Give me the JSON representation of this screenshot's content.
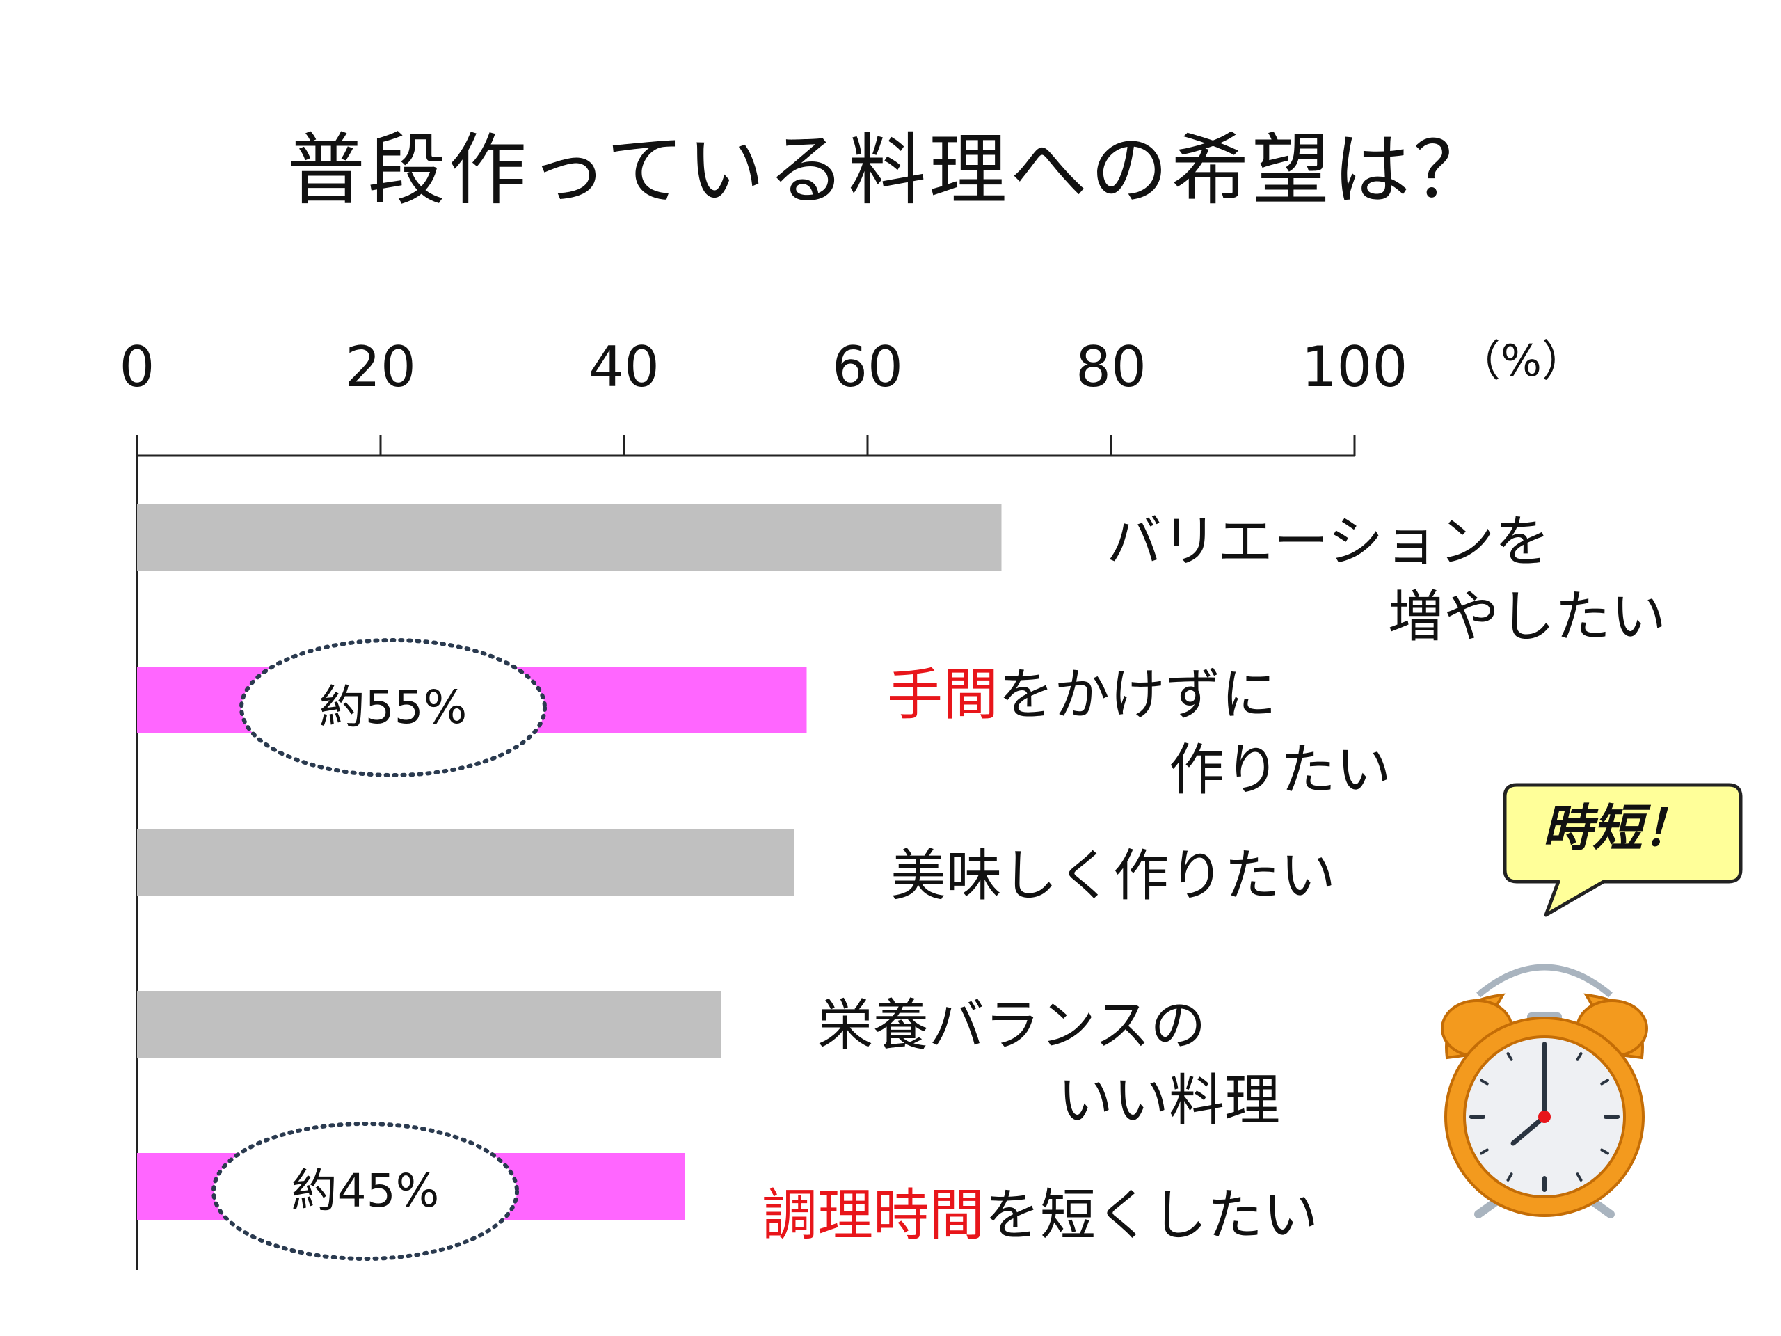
{
  "title": "普段作っている料理への希望は？",
  "chart_data": {
    "type": "bar",
    "orientation": "horizontal",
    "title": "普段作っている料理への希望は？",
    "xlim": [
      0,
      100
    ],
    "x_ticks": [
      "0",
      "20",
      "40",
      "60",
      "80",
      "100"
    ],
    "unit_label": "（%）",
    "grid": false,
    "categories": [
      {
        "parts": [
          {
            "text": "バリエーションを",
            "highlight": false
          }
        ],
        "second_line": "増やしたい"
      },
      {
        "parts": [
          {
            "text": "手間",
            "highlight": true
          },
          {
            "text": "をかけずに",
            "highlight": false
          }
        ],
        "second_line": "作りたい"
      },
      {
        "parts": [
          {
            "text": "美味しく作りたい",
            "highlight": false
          }
        ],
        "second_line": ""
      },
      {
        "parts": [
          {
            "text": "栄養バランスの",
            "highlight": false
          }
        ],
        "second_line": "いい料理"
      },
      {
        "parts": [
          {
            "text": "調理時間",
            "highlight": true
          },
          {
            "text": "を短くしたい",
            "highlight": false
          }
        ],
        "second_line": ""
      }
    ],
    "values": [
      71,
      55,
      54,
      48,
      45
    ],
    "bar_colors": [
      "#c0c0c0",
      "#ff66ff",
      "#c0c0c0",
      "#c0c0c0",
      "#ff66ff"
    ],
    "highlight_color": "#e8151a",
    "annotations": [
      {
        "bar_index": 1,
        "text": "約55%"
      },
      {
        "bar_index": 4,
        "text": "約45%"
      }
    ]
  },
  "speech_bubble": {
    "text": "時短！",
    "fill": "#ffff99"
  },
  "illustration": {
    "icon": "alarm-clock-icon",
    "body_color": "#f39a1e",
    "time_shown": "8:00"
  }
}
